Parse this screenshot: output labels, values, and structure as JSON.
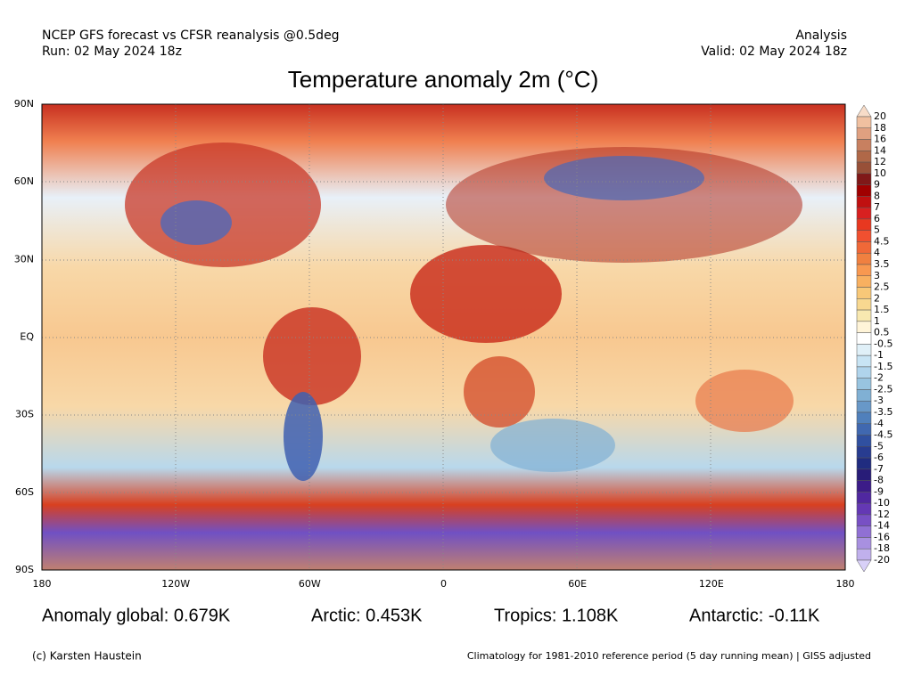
{
  "header": {
    "line1": "NCEP GFS forecast vs CFSR reanalysis @0.5deg",
    "line2": "Run: 02 May 2024 18z",
    "right1": "Analysis",
    "right2": "Valid: 02 May 2024 18z"
  },
  "title": "Temperature anomaly 2m (°C)",
  "lat_labels": [
    "90N",
    "60N",
    "30N",
    "EQ",
    "30S",
    "60S",
    "90S"
  ],
  "lon_labels": [
    "180",
    "120W",
    "60W",
    "0",
    "60E",
    "120E",
    "180"
  ],
  "colorbar": {
    "labels": [
      "20",
      "18",
      "16",
      "14",
      "12",
      "10",
      "9",
      "8",
      "7",
      "6",
      "5",
      "4.5",
      "4",
      "3.5",
      "3",
      "2.5",
      "2",
      "1.5",
      "1",
      "0.5",
      "-0.5",
      "-1",
      "-1.5",
      "-2",
      "-2.5",
      "-3",
      "-3.5",
      "-4",
      "-4.5",
      "-5",
      "-6",
      "-7",
      "-8",
      "-9",
      "-10",
      "-12",
      "-14",
      "-16",
      "-18",
      "-20"
    ],
    "colors": [
      "#f7dcc8",
      "#f0c0a0",
      "#e0a080",
      "#c88060",
      "#b06848",
      "#985038",
      "#801818",
      "#a00000",
      "#c01010",
      "#d82020",
      "#e83820",
      "#f05030",
      "#f06838",
      "#f08040",
      "#f89850",
      "#f8b060",
      "#f8c878",
      "#f8d890",
      "#f8e8b0",
      "#fff4d8",
      "#ffffff",
      "#e0f0f8",
      "#c8e4f4",
      "#b0d4ec",
      "#98c4e0",
      "#80b0d4",
      "#6898c8",
      "#5080bc",
      "#4068b0",
      "#3050a0",
      "#283c90",
      "#202c80",
      "#281c78",
      "#3c1c88",
      "#5028a0",
      "#6438b4",
      "#7850c4",
      "#9070d4",
      "#a890e0",
      "#c0b0ec",
      "#d8d0f8"
    ]
  },
  "stats": [
    "Anomaly global: 0.679K",
    "Arctic: 0.453K",
    "Tropics: 1.108K",
    "Antarctic: -0.11K"
  ],
  "footer": {
    "left": "(c) Karsten Haustein",
    "right": "Climatology for 1981-2010 reference period (5 day running mean) | GISS adjusted"
  }
}
